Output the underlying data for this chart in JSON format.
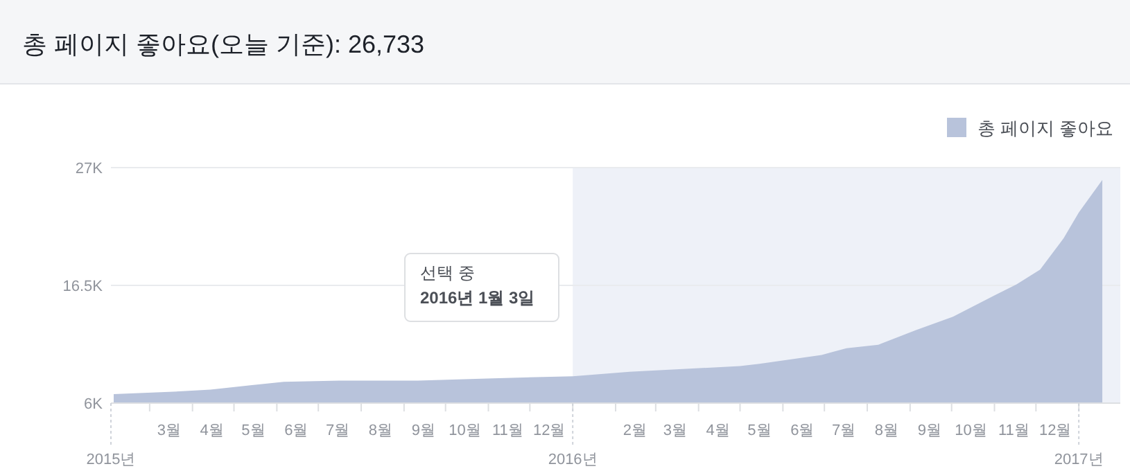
{
  "chart_data": {
    "type": "area",
    "title": "총 페이지 좋아요(오늘 기준): 26,733",
    "x": [
      "2015-02-03",
      "2015-03-15",
      "2015-04-14",
      "2015-05-14",
      "2015-06-06",
      "2015-07-16",
      "2015-09-11",
      "2015-10-31",
      "2016-01-01",
      "2016-02-11",
      "2016-05-01",
      "2016-05-15",
      "2016-06-29",
      "2016-07-17",
      "2016-08-09",
      "2016-09-05",
      "2016-10-02",
      "2016-11-01",
      "2016-11-17",
      "2016-12-04",
      "2016-12-21",
      "2017-01-01",
      "2017-01-18"
    ],
    "series": [
      {
        "name": "총 페이지 좋아요",
        "color": "#b8c3db",
        "values": [
          6.8,
          7.0,
          7.2,
          7.6,
          7.9,
          8.0,
          8.0,
          8.2,
          8.4,
          8.8,
          9.3,
          9.5,
          10.3,
          10.9,
          11.2,
          12.5,
          13.7,
          15.6,
          16.6,
          17.9,
          20.7,
          23,
          25.9
        ]
      }
    ],
    "xlim": [
      "2015-02-01",
      "2017-01-31"
    ],
    "ylim": [
      6,
      27
    ],
    "yticks": [
      {
        "value": 6,
        "label": "6K"
      },
      {
        "value": 16.5,
        "label": "16.5K"
      },
      {
        "value": 27,
        "label": "27K"
      }
    ],
    "xticks": [
      {
        "value": "2015-03-01",
        "label": null
      },
      {
        "value": "2015-03-15",
        "label": "3월"
      },
      {
        "value": "2015-04-01",
        "label": null
      },
      {
        "value": "2015-04-15",
        "label": "4월"
      },
      {
        "value": "2015-05-01",
        "label": null
      },
      {
        "value": "2015-05-15",
        "label": "5월"
      },
      {
        "value": "2015-06-01",
        "label": null
      },
      {
        "value": "2015-06-15",
        "label": "6월"
      },
      {
        "value": "2015-07-01",
        "label": null
      },
      {
        "value": "2015-07-15",
        "label": "7월"
      },
      {
        "value": "2015-08-01",
        "label": null
      },
      {
        "value": "2015-08-15",
        "label": "8월"
      },
      {
        "value": "2015-09-01",
        "label": null
      },
      {
        "value": "2015-09-15",
        "label": "9월"
      },
      {
        "value": "2015-10-01",
        "label": null
      },
      {
        "value": "2015-10-15",
        "label": "10월"
      },
      {
        "value": "2015-11-01",
        "label": null
      },
      {
        "value": "2015-11-15",
        "label": "11월"
      },
      {
        "value": "2015-12-01",
        "label": null
      },
      {
        "value": "2015-12-15",
        "label": "12월"
      },
      {
        "value": "2016-01-01",
        "label": null
      },
      {
        "value": "2016-02-01",
        "label": null
      },
      {
        "value": "2016-02-15",
        "label": "2월"
      },
      {
        "value": "2016-03-01",
        "label": null
      },
      {
        "value": "2016-03-15",
        "label": "3월"
      },
      {
        "value": "2016-04-01",
        "label": null
      },
      {
        "value": "2016-04-15",
        "label": "4월"
      },
      {
        "value": "2016-05-01",
        "label": null
      },
      {
        "value": "2016-05-15",
        "label": "5월"
      },
      {
        "value": "2016-06-01",
        "label": null
      },
      {
        "value": "2016-06-15",
        "label": "6월"
      },
      {
        "value": "2016-07-01",
        "label": null
      },
      {
        "value": "2016-07-15",
        "label": "7월"
      },
      {
        "value": "2016-08-01",
        "label": null
      },
      {
        "value": "2016-08-15",
        "label": "8월"
      },
      {
        "value": "2016-09-01",
        "label": null
      },
      {
        "value": "2016-09-15",
        "label": "9월"
      },
      {
        "value": "2016-10-01",
        "label": null
      },
      {
        "value": "2016-10-15",
        "label": "10월"
      },
      {
        "value": "2016-11-01",
        "label": null
      },
      {
        "value": "2016-11-15",
        "label": "11월"
      },
      {
        "value": "2016-12-01",
        "label": null
      },
      {
        "value": "2016-12-15",
        "label": "12월"
      },
      {
        "value": "2017-01-01",
        "label": null
      }
    ],
    "ref_lines": [
      {
        "axis": "x",
        "value": "2015-02-01",
        "label": "2015년",
        "line_style": "dashed"
      },
      {
        "axis": "x",
        "value": "2016-01-01",
        "label": "2016년",
        "line_style": "dashed"
      },
      {
        "axis": "x",
        "value": "2017-01-01",
        "label": "2017년",
        "line_style": "dashed"
      }
    ],
    "grid": "y",
    "legend": "top right",
    "bands": [
      {
        "axis": "x",
        "from": "2016-01-01",
        "to": "2017-01-31",
        "color": "#eef1f8"
      }
    ],
    "annotations": [
      "선택 중",
      "2016년 1월 3일"
    ]
  }
}
